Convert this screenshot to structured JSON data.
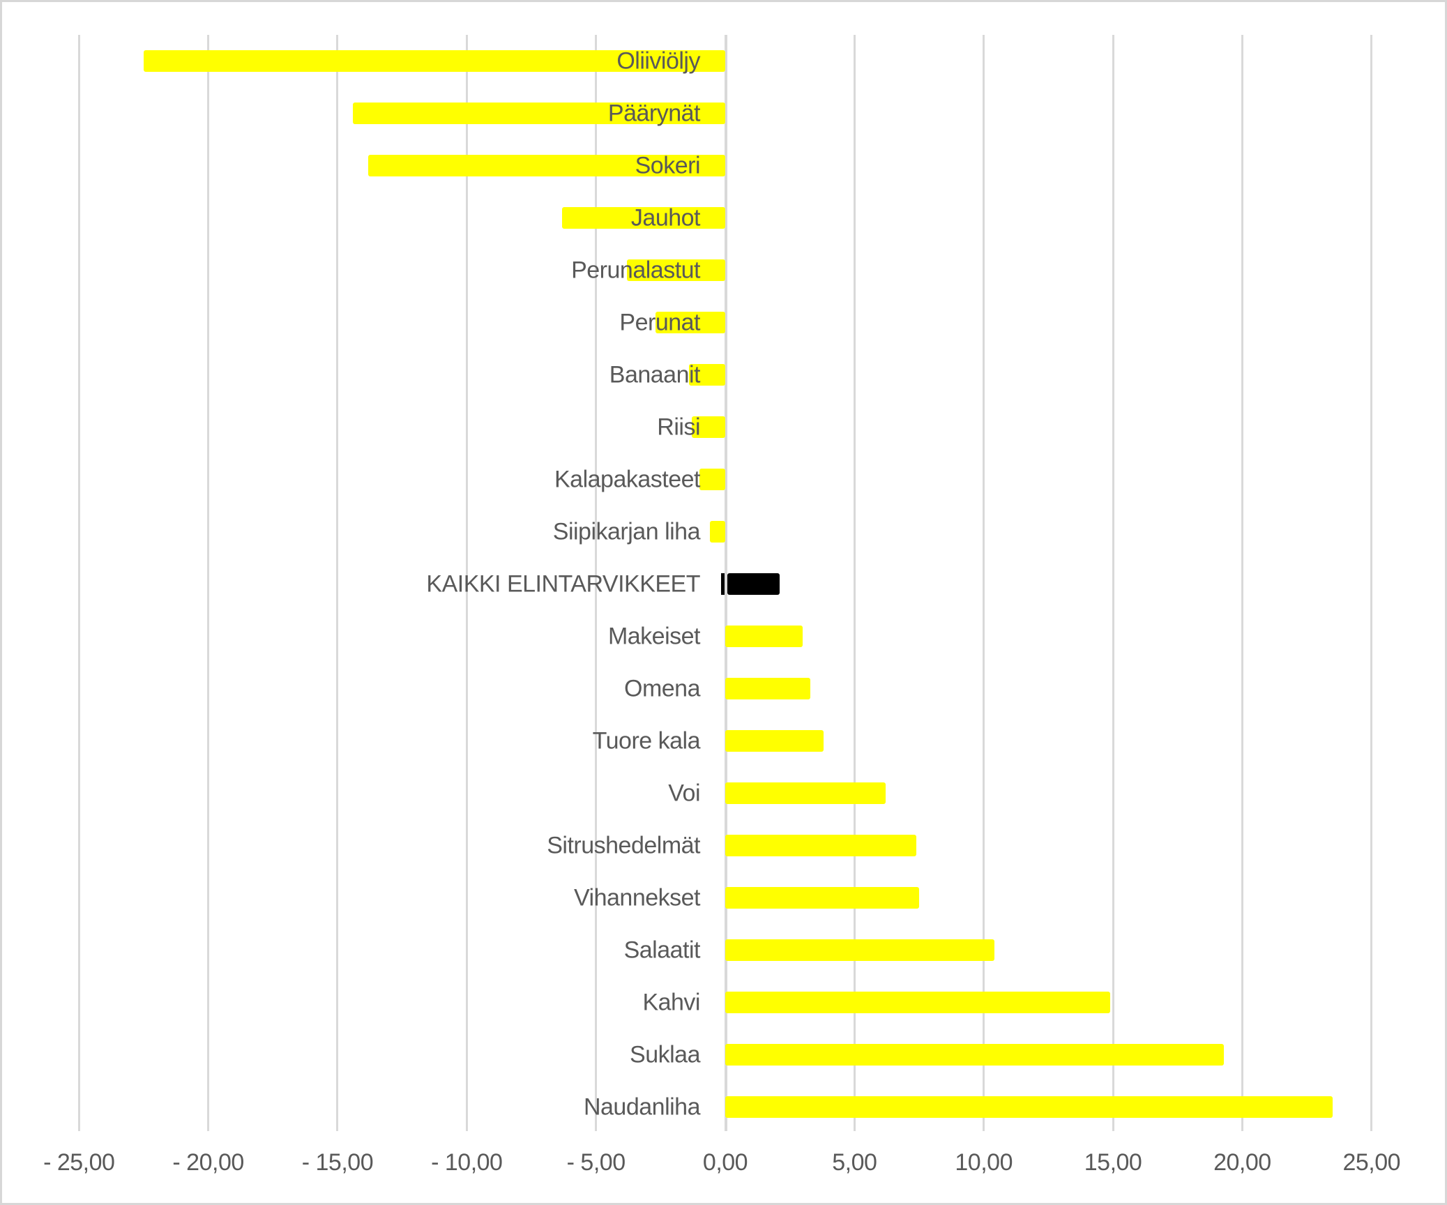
{
  "chart_data": {
    "type": "bar",
    "orientation": "horizontal",
    "title": "",
    "categories": [
      "Oliiviöljy",
      "Päärynät",
      "Sokeri",
      "Jauhot",
      "Perunalastut",
      "Perunat",
      "Banaanit",
      "Riisi",
      "Kalapakasteet",
      "Siipikarjan liha",
      "KAIKKI ELINTARVIKKEET",
      "Makeiset",
      "Omena",
      "Tuore kala",
      "Voi",
      "Sitrushedelmät",
      "Vihannekset",
      "Salaatit",
      "Kahvi",
      "Suklaa",
      "Naudanliha"
    ],
    "values": [
      -22.5,
      -14.4,
      -13.8,
      -6.3,
      -3.8,
      -2.7,
      -1.4,
      -1.3,
      -1.0,
      -0.6,
      2.1,
      3.0,
      3.3,
      3.8,
      6.2,
      7.4,
      7.5,
      10.4,
      14.9,
      19.3,
      23.5
    ],
    "highlight_category": "KAIKKI ELINTARVIKKEET",
    "colors": {
      "bar": "#FFFF00",
      "highlight": "#000000",
      "gridline": "#D9D9D9",
      "label": "#595959",
      "background": "#FFFFFF"
    },
    "x_axis": {
      "min": -25,
      "max": 25,
      "tick_step": 5,
      "tick_labels": [
        "- 25,00",
        "- 20,00",
        "- 15,00",
        "- 10,00",
        "- 5,00",
        "0,00",
        "5,00",
        "10,00",
        "15,00",
        "20,00",
        "25,00"
      ]
    },
    "grid": true,
    "legend": false
  }
}
